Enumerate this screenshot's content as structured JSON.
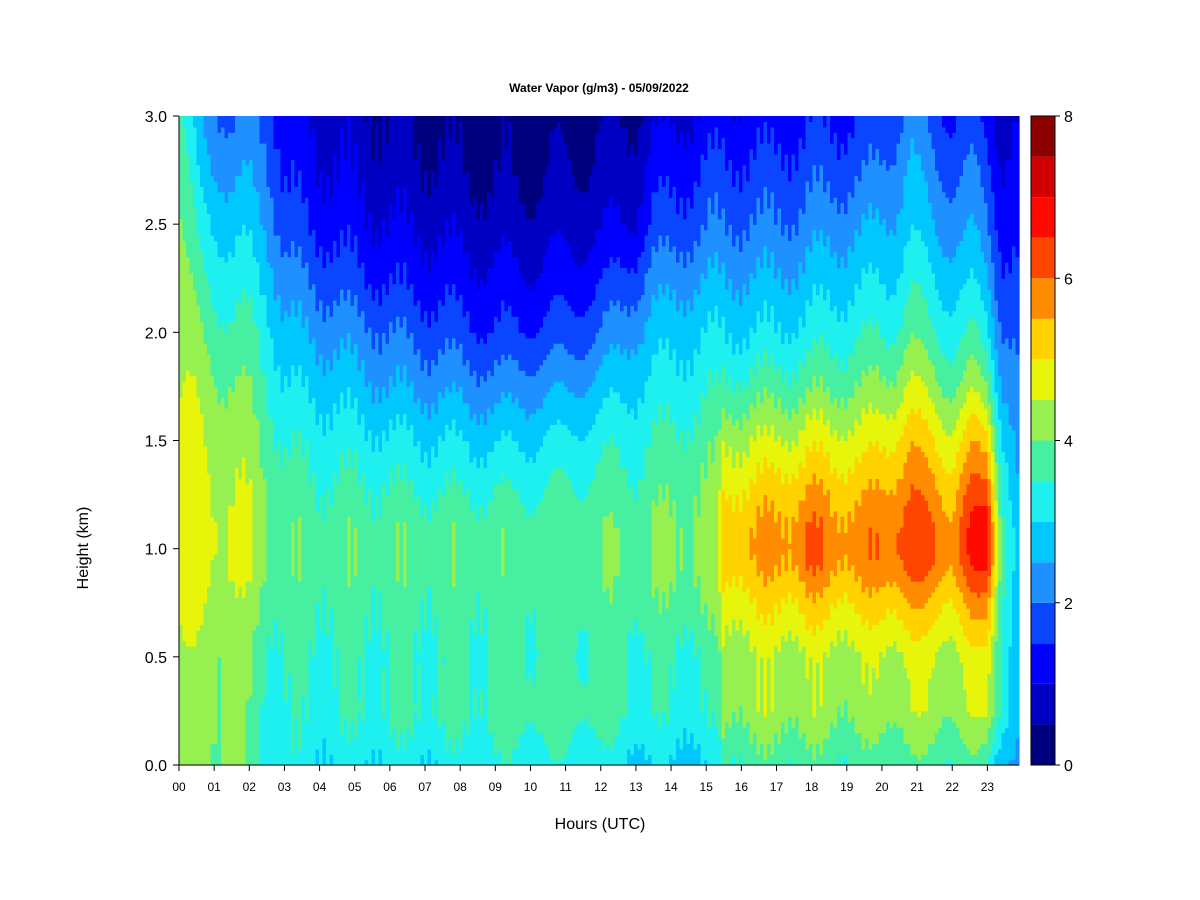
{
  "chart_data": {
    "type": "heatmap",
    "title": "Water Vapor (g/m3) - 05/09/2022",
    "xlabel": "Hours (UTC)",
    "ylabel": "Height (km)",
    "x_ticks": [
      "00",
      "01",
      "02",
      "03",
      "04",
      "05",
      "06",
      "07",
      "08",
      "09",
      "10",
      "11",
      "12",
      "13",
      "14",
      "15",
      "16",
      "17",
      "18",
      "19",
      "20",
      "21",
      "22",
      "23"
    ],
    "y_ticks": [
      "0.0",
      "0.5",
      "1.0",
      "1.5",
      "2.0",
      "2.5",
      "3.0"
    ],
    "xlim": [
      0,
      23.9
    ],
    "ylim": [
      0,
      3.0
    ],
    "colorbar": {
      "ticks": [
        "0",
        "2",
        "4",
        "6",
        "8"
      ],
      "range": [
        0,
        8
      ],
      "levels": [
        0,
        0.5,
        1,
        1.5,
        2,
        2.5,
        3,
        3.5,
        4,
        4.5,
        5,
        5.5,
        6,
        6.5,
        7,
        7.5,
        8
      ],
      "colors": [
        "#00007f",
        "#0000c4",
        "#0000ff",
        "#0a46ff",
        "#1e90ff",
        "#00c8ff",
        "#1ef0f0",
        "#46f0a0",
        "#96f050",
        "#e6f50a",
        "#ffd200",
        "#ff8c00",
        "#ff4600",
        "#ff0a00",
        "#d20000",
        "#8c0000"
      ],
      "position": "right"
    },
    "heights_km": [
      0.0,
      0.25,
      0.5,
      0.75,
      0.9,
      1.0,
      1.1,
      1.25,
      1.5,
      1.75,
      2.0,
      2.25,
      2.5,
      2.75,
      3.0
    ],
    "profiles": [
      {
        "hour": 0.0,
        "values": [
          4.0,
          4.3,
          4.4,
          4.6,
          4.7,
          4.7,
          4.7,
          4.6,
          4.6,
          4.5,
          4.4,
          4.2,
          4.1,
          3.9,
          3.7
        ]
      },
      {
        "hour": 0.6,
        "values": [
          4.0,
          4.2,
          4.2,
          4.5,
          4.6,
          4.7,
          4.7,
          4.6,
          4.5,
          4.3,
          4.0,
          3.6,
          3.2,
          2.8,
          2.4
        ]
      },
      {
        "hour": 1.5,
        "values": [
          4.2,
          4.2,
          4.2,
          4.4,
          4.6,
          4.6,
          4.6,
          4.5,
          4.3,
          4.0,
          3.6,
          3.2,
          2.8,
          2.3,
          1.9
        ]
      },
      {
        "hour": 2.0,
        "values": [
          3.6,
          3.8,
          3.9,
          4.2,
          4.4,
          4.5,
          4.5,
          4.4,
          4.2,
          3.9,
          3.6,
          3.2,
          2.8,
          2.4,
          2.0
        ]
      },
      {
        "hour": 2.5,
        "values": [
          3.3,
          3.5,
          3.6,
          3.9,
          4.1,
          4.2,
          4.2,
          4.1,
          3.9,
          3.6,
          3.3,
          2.9,
          2.5,
          2.2,
          1.9
        ]
      },
      {
        "hour": 3.0,
        "values": [
          3.3,
          3.4,
          3.5,
          3.7,
          3.8,
          3.8,
          3.8,
          3.7,
          3.4,
          3.0,
          2.6,
          2.2,
          1.7,
          1.4,
          1.2
        ]
      },
      {
        "hour": 4.0,
        "values": [
          3.1,
          3.4,
          3.5,
          3.7,
          3.8,
          3.8,
          3.8,
          3.6,
          3.3,
          2.9,
          2.4,
          1.9,
          1.4,
          1.1,
          0.9
        ]
      },
      {
        "hour": 5.0,
        "values": [
          3.1,
          3.5,
          3.5,
          3.7,
          3.8,
          3.8,
          3.8,
          3.6,
          3.2,
          2.7,
          2.2,
          1.6,
          1.2,
          0.9,
          0.7
        ]
      },
      {
        "hour": 6.0,
        "values": [
          3.1,
          3.6,
          3.5,
          3.7,
          3.8,
          3.8,
          3.8,
          3.6,
          3.1,
          2.5,
          2.0,
          1.4,
          1.0,
          0.7,
          0.5
        ]
      },
      {
        "hour": 7.0,
        "values": [
          3.1,
          3.6,
          3.5,
          3.7,
          3.8,
          3.8,
          3.8,
          3.5,
          3.0,
          2.4,
          1.8,
          1.3,
          0.9,
          0.6,
          0.4
        ]
      },
      {
        "hour": 8.0,
        "values": [
          3.2,
          3.6,
          3.5,
          3.7,
          3.8,
          3.8,
          3.8,
          3.5,
          3.0,
          2.3,
          1.7,
          1.2,
          0.8,
          0.5,
          0.3
        ]
      },
      {
        "hour": 9.0,
        "values": [
          3.3,
          3.7,
          3.6,
          3.7,
          3.8,
          3.8,
          3.8,
          3.5,
          2.9,
          2.2,
          1.5,
          1.1,
          0.7,
          0.4,
          0.3
        ]
      },
      {
        "hour": 10.0,
        "values": [
          3.3,
          3.8,
          3.6,
          3.7,
          3.8,
          3.8,
          3.8,
          3.5,
          3.0,
          2.3,
          1.6,
          1.1,
          0.7,
          0.4,
          0.3
        ]
      },
      {
        "hour": 11.0,
        "values": [
          3.3,
          3.8,
          3.6,
          3.7,
          3.8,
          3.8,
          3.8,
          3.6,
          3.1,
          2.4,
          1.7,
          1.2,
          0.8,
          0.5,
          0.3
        ]
      },
      {
        "hour": 12.0,
        "values": [
          3.2,
          3.7,
          3.6,
          3.8,
          3.9,
          3.9,
          3.9,
          3.7,
          3.3,
          2.7,
          2.0,
          1.4,
          0.9,
          0.6,
          0.4
        ]
      },
      {
        "hour": 13.0,
        "values": [
          3.0,
          3.5,
          3.5,
          3.8,
          3.9,
          3.9,
          3.9,
          3.7,
          3.4,
          3.0,
          2.5,
          1.8,
          1.1,
          0.8,
          0.5
        ]
      },
      {
        "hour": 13.5,
        "values": [
          2.9,
          3.4,
          3.5,
          3.8,
          4.0,
          4.0,
          4.0,
          3.8,
          3.5,
          3.1,
          2.7,
          2.2,
          1.6,
          1.2,
          0.8
        ]
      },
      {
        "hour": 14.5,
        "values": [
          2.9,
          3.4,
          3.5,
          3.9,
          4.1,
          4.1,
          4.1,
          4.0,
          3.7,
          3.3,
          2.9,
          2.4,
          1.8,
          1.4,
          1.0
        ]
      },
      {
        "hour": 15.3,
        "values": [
          2.9,
          3.4,
          3.6,
          4.0,
          4.2,
          4.2,
          4.2,
          4.1,
          3.8,
          3.4,
          3.0,
          2.5,
          2.0,
          1.6,
          1.2
        ]
      },
      {
        "hour": 15.5,
        "values": [
          3.6,
          4.2,
          4.3,
          4.8,
          5.2,
          5.4,
          5.3,
          5.0,
          4.4,
          3.6,
          3.0,
          2.5,
          2.0,
          1.6,
          1.2
        ]
      },
      {
        "hour": 16.5,
        "values": [
          3.7,
          4.3,
          4.4,
          5.0,
          5.4,
          5.6,
          5.5,
          5.2,
          4.5,
          3.7,
          3.0,
          2.5,
          2.0,
          1.6,
          1.2
        ]
      },
      {
        "hour": 17.5,
        "values": [
          3.7,
          4.3,
          4.4,
          5.1,
          5.6,
          5.8,
          5.7,
          5.4,
          4.6,
          3.8,
          3.1,
          2.6,
          2.1,
          1.7,
          1.3
        ]
      },
      {
        "hour": 18.0,
        "values": [
          3.7,
          4.3,
          4.4,
          5.3,
          5.9,
          6.2,
          6.0,
          5.6,
          4.8,
          3.9,
          3.2,
          2.7,
          2.2,
          1.8,
          1.4
        ]
      },
      {
        "hour": 18.6,
        "values": [
          3.6,
          4.2,
          4.4,
          5.1,
          5.6,
          5.8,
          5.7,
          5.4,
          4.7,
          3.9,
          3.3,
          2.8,
          2.3,
          1.8,
          1.4
        ]
      },
      {
        "hour": 19.5,
        "values": [
          3.6,
          4.2,
          4.4,
          5.1,
          5.6,
          5.8,
          5.7,
          5.4,
          4.7,
          4.0,
          3.4,
          2.9,
          2.4,
          1.9,
          1.5
        ]
      },
      {
        "hour": 20.3,
        "values": [
          3.7,
          4.3,
          4.5,
          5.3,
          5.9,
          6.1,
          6.0,
          5.7,
          5.0,
          4.2,
          3.5,
          3.0,
          2.6,
          2.2,
          1.7
        ]
      },
      {
        "hour": 20.8,
        "values": [
          3.8,
          4.4,
          4.6,
          5.5,
          6.1,
          6.4,
          6.3,
          6.0,
          5.4,
          4.6,
          3.9,
          3.4,
          2.9,
          2.6,
          2.3
        ]
      },
      {
        "hour": 21.5,
        "values": [
          3.7,
          4.3,
          4.5,
          5.3,
          5.9,
          6.1,
          6.0,
          5.7,
          5.0,
          4.2,
          3.5,
          3.0,
          2.5,
          2.1,
          1.7
        ]
      },
      {
        "hour": 22.0,
        "values": [
          3.6,
          4.2,
          4.4,
          5.1,
          5.6,
          5.8,
          5.7,
          5.4,
          4.7,
          3.9,
          3.3,
          2.8,
          2.3,
          1.9,
          1.5
        ]
      },
      {
        "hour": 22.6,
        "values": [
          3.7,
          4.4,
          4.6,
          5.6,
          6.3,
          6.7,
          6.6,
          6.2,
          5.4,
          4.3,
          3.5,
          2.9,
          2.4,
          2.0,
          1.6
        ]
      },
      {
        "hour": 23.0,
        "values": [
          3.5,
          4.6,
          4.8,
          5.8,
          6.5,
          7.0,
          6.8,
          6.3,
          5.2,
          4.0,
          3.2,
          2.6,
          2.1,
          1.7,
          1.3
        ]
      },
      {
        "hour": 23.4,
        "values": [
          2.8,
          3.6,
          3.6,
          3.8,
          3.9,
          4.0,
          3.9,
          3.7,
          3.2,
          2.6,
          2.1,
          1.7,
          1.4,
          1.1,
          0.9
        ]
      },
      {
        "hour": 23.9,
        "values": [
          2.2,
          2.5,
          2.5,
          2.5,
          2.5,
          2.5,
          2.5,
          2.4,
          2.2,
          2.0,
          1.8,
          1.5,
          1.3,
          1.1,
          0.9
        ]
      }
    ]
  }
}
